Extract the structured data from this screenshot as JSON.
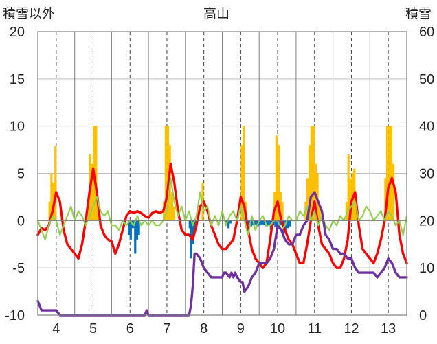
{
  "chart_data": {
    "type": "combo",
    "title": "高山",
    "left_axis_label": "積雪以外",
    "right_axis_label": "積雪",
    "left_ylim": [
      -10,
      20
    ],
    "right_ylim": [
      0,
      60
    ],
    "left_ticks": [
      "20",
      "15",
      "10",
      "5",
      "0",
      "-5",
      "-10"
    ],
    "right_ticks": [
      "60",
      "50",
      "40",
      "30",
      "20",
      "10",
      "0"
    ],
    "xlim": [
      3.5,
      13.5
    ],
    "x_ticks": [
      "4",
      "5",
      "6",
      "7",
      "8",
      "9",
      "10",
      "11",
      "12",
      "13"
    ],
    "grid": true,
    "series": [
      {
        "kind": "bar",
        "color": "#ffc000",
        "axis": "left",
        "x": [
          3.82,
          3.87,
          3.93,
          3.98,
          4.87,
          4.92,
          4.97,
          5.03,
          5.08,
          5.14,
          6.92,
          6.97,
          7.03,
          7.08,
          7.14,
          7.19,
          7.97,
          9.03,
          9.08,
          9.14,
          9.92,
          9.97,
          10.03,
          10.08,
          10.13,
          10.76,
          10.81,
          10.87,
          10.92,
          10.98,
          11.03,
          11.08,
          11.14,
          11.87,
          11.92,
          11.97,
          12.03,
          12.08,
          12.12,
          12.92,
          12.97,
          13.03,
          13.08,
          13.14
        ],
        "values": [
          2.0,
          5.0,
          4.0,
          7.9,
          2.0,
          7.0,
          6.0,
          10.0,
          10.0,
          2.0,
          2.0,
          10.0,
          10.0,
          8.0,
          3.0,
          1.5,
          4.0,
          8.0,
          10.0,
          2.0,
          3.0,
          9.0,
          8.0,
          3.0,
          2.0,
          2.0,
          4.5,
          8.0,
          10.0,
          10.0,
          6.0,
          5.0,
          1.5,
          2.0,
          7.0,
          4.5,
          5.0,
          5.5,
          2.0,
          4.5,
          10.0,
          10.0,
          10.0,
          6.0
        ]
      },
      {
        "kind": "bar",
        "color": "#0070c0",
        "axis": "left",
        "x": [
          5.97,
          6.02,
          6.08,
          6.14,
          6.19,
          6.24,
          7.62,
          7.66,
          7.71,
          7.76,
          8.62,
          8.67,
          8.72,
          9.17,
          9.22,
          9.28,
          9.34,
          9.4,
          9.46,
          9.52,
          9.58,
          9.64,
          9.7,
          9.76,
          9.82,
          9.88,
          9.94,
          9.98,
          10.04,
          10.1,
          10.16,
          10.22,
          10.28,
          10.34
        ],
        "values": [
          -1.5,
          -2.0,
          -0.8,
          -3.5,
          -2.0,
          -1.5,
          -0.8,
          -4.0,
          -2.5,
          -1.2,
          -0.5,
          -0.8,
          -0.3,
          -0.5,
          -0.4,
          -0.6,
          -0.5,
          -0.4,
          -0.6,
          -0.5,
          -0.4,
          -0.5,
          -0.6,
          -0.5,
          -1.0,
          -0.5,
          -0.7,
          -0.8,
          -0.5,
          -0.5,
          -1.5,
          -1.0,
          -0.8,
          -0.6
        ]
      },
      {
        "kind": "line",
        "color": "#ff0000",
        "axis": "left",
        "x": [
          3.5,
          3.6,
          3.7,
          3.8,
          3.9,
          4.0,
          4.1,
          4.2,
          4.3,
          4.4,
          4.5,
          4.6,
          4.7,
          4.8,
          4.9,
          5.0,
          5.1,
          5.2,
          5.3,
          5.4,
          5.5,
          5.6,
          5.7,
          5.8,
          5.9,
          6.0,
          6.1,
          6.2,
          6.3,
          6.4,
          6.5,
          6.6,
          6.7,
          6.8,
          6.9,
          7.0,
          7.1,
          7.2,
          7.3,
          7.4,
          7.5,
          7.6,
          7.7,
          7.8,
          7.9,
          8.0,
          8.1,
          8.2,
          8.3,
          8.4,
          8.5,
          8.6,
          8.7,
          8.8,
          8.9,
          9.0,
          9.1,
          9.2,
          9.3,
          9.4,
          9.5,
          9.6,
          9.7,
          9.8,
          9.9,
          10.0,
          10.1,
          10.2,
          10.3,
          10.4,
          10.5,
          10.6,
          10.7,
          10.8,
          10.9,
          11.0,
          11.1,
          11.2,
          11.3,
          11.4,
          11.5,
          11.6,
          11.7,
          11.8,
          11.9,
          12.0,
          12.1,
          12.2,
          12.3,
          12.4,
          12.5,
          12.6,
          12.7,
          12.8,
          12.9,
          13.0,
          13.1,
          13.2,
          13.3,
          13.4,
          13.5
        ],
        "values": [
          -1.5,
          -0.8,
          -1.0,
          -0.5,
          1.0,
          3.0,
          2.0,
          -1.0,
          -2.5,
          -3.0,
          -3.5,
          -4.0,
          -2.5,
          0.0,
          3.0,
          5.5,
          3.0,
          -0.5,
          -1.5,
          -2.0,
          -2.2,
          -3.5,
          -2.5,
          -1.0,
          0.5,
          1.0,
          0.8,
          1.0,
          0.8,
          0.5,
          0.3,
          0.8,
          1.0,
          0.8,
          1.0,
          2.5,
          6.0,
          4.0,
          1.0,
          -1.0,
          -1.5,
          -1.5,
          -2.0,
          -0.5,
          1.5,
          2.0,
          1.0,
          -0.5,
          -1.5,
          -2.5,
          -3.0,
          -3.0,
          -2.5,
          -2.0,
          0.0,
          2.5,
          1.5,
          -1.0,
          -3.0,
          -4.0,
          -4.5,
          -5.0,
          -4.5,
          -2.0,
          1.0,
          2.0,
          0.0,
          -1.0,
          -2.0,
          -2.5,
          -3.5,
          -4.5,
          -4.5,
          -2.5,
          0.0,
          2.0,
          -0.5,
          -2.5,
          -3.0,
          -3.5,
          -4.5,
          -5.0,
          -5.0,
          -4.0,
          -2.0,
          2.0,
          3.0,
          -0.5,
          -3.0,
          -3.5,
          -4.0,
          -4.5,
          -3.5,
          -2.0,
          0.0,
          3.5,
          4.5,
          3.0,
          -1.5,
          -3.5,
          -4.5
        ]
      },
      {
        "kind": "line",
        "color": "#92d050",
        "axis": "left",
        "x": [
          3.5,
          3.6,
          3.7,
          3.8,
          3.9,
          4.0,
          4.1,
          4.2,
          4.3,
          4.4,
          4.5,
          4.6,
          4.7,
          4.8,
          4.9,
          5.0,
          5.1,
          5.2,
          5.3,
          5.4,
          5.5,
          5.6,
          5.7,
          5.8,
          5.9,
          6.0,
          6.1,
          6.2,
          6.3,
          6.4,
          6.5,
          6.6,
          6.7,
          6.8,
          6.9,
          7.0,
          7.1,
          7.2,
          7.3,
          7.4,
          7.5,
          7.6,
          7.7,
          7.8,
          7.9,
          8.0,
          8.1,
          8.2,
          8.3,
          8.4,
          8.5,
          8.6,
          8.7,
          8.8,
          8.9,
          9.0,
          9.1,
          9.2,
          9.3,
          9.4,
          9.5,
          9.6,
          9.7,
          9.8,
          9.9,
          10.0,
          10.1,
          10.2,
          10.3,
          10.4,
          10.5,
          10.6,
          10.7,
          10.8,
          10.9,
          11.0,
          11.1,
          11.2,
          11.3,
          11.4,
          11.5,
          11.6,
          11.7,
          11.8,
          11.9,
          12.0,
          12.1,
          12.2,
          12.3,
          12.4,
          12.5,
          12.6,
          12.7,
          12.8,
          12.9,
          13.0,
          13.1,
          13.2,
          13.3,
          13.4,
          13.5
        ],
        "values": [
          0.0,
          -1.0,
          -2.0,
          -0.5,
          0.5,
          0.0,
          -1.5,
          -0.5,
          0.5,
          1.5,
          0.0,
          1.0,
          0.5,
          -0.5,
          0.5,
          1.5,
          2.5,
          1.0,
          0.5,
          1.0,
          -0.5,
          -0.5,
          -1.0,
          0.0,
          -0.5,
          0.0,
          -0.5,
          0.5,
          -0.5,
          0.0,
          -0.5,
          0.0,
          -0.5,
          -0.5,
          0.0,
          1.0,
          4.5,
          2.0,
          0.5,
          1.5,
          0.0,
          1.0,
          -0.5,
          0.5,
          3.0,
          1.0,
          1.5,
          -0.5,
          0.5,
          -0.5,
          1.0,
          -0.5,
          0.5,
          1.0,
          0.0,
          1.5,
          0.0,
          -1.5,
          0.5,
          -1.0,
          0.0,
          0.5,
          -0.5,
          -0.5,
          0.0,
          0.0,
          -1.0,
          -0.5,
          0.5,
          0.0,
          0.0,
          1.0,
          0.5,
          1.5,
          0.0,
          1.0,
          -0.5,
          0.5,
          -0.5,
          -1.0,
          0.0,
          -0.5,
          0.5,
          0.0,
          1.0,
          1.5,
          2.0,
          0.0,
          0.5,
          1.5,
          1.0,
          0.0,
          0.5,
          1.0,
          0.0,
          1.0,
          0.5,
          -0.5,
          0.0,
          -1.5,
          0.5
        ]
      },
      {
        "kind": "line",
        "color": "#7030a0",
        "axis": "right",
        "x": [
          3.5,
          3.55,
          3.6,
          3.8,
          4.0,
          4.1,
          6.4,
          6.45,
          6.5,
          7.6,
          7.65,
          7.7,
          7.75,
          7.8,
          7.9,
          8.0,
          8.1,
          8.2,
          8.3,
          8.5,
          8.55,
          8.6,
          8.7,
          8.75,
          8.8,
          8.85,
          8.9,
          9.0,
          9.05,
          9.1,
          9.2,
          9.3,
          9.4,
          9.5,
          9.6,
          9.7,
          9.8,
          9.9,
          10.0,
          10.1,
          10.2,
          10.3,
          10.4,
          10.5,
          10.6,
          10.7,
          10.8,
          10.9,
          11.0,
          11.1,
          11.2,
          11.3,
          11.4,
          11.5,
          11.6,
          11.7,
          11.8,
          11.9,
          12.0,
          12.1,
          12.2,
          12.3,
          12.4,
          12.5,
          12.6,
          12.7,
          12.8,
          12.9,
          13.0,
          13.1,
          13.2,
          13.3,
          13.4,
          13.5
        ],
        "values": [
          3,
          2,
          1,
          1,
          1,
          0,
          0,
          1,
          0,
          0,
          2,
          6,
          13,
          13,
          12,
          10,
          9,
          8,
          8,
          8,
          9,
          9,
          8,
          9,
          8,
          9,
          8,
          7,
          7,
          5,
          6,
          8,
          9,
          11,
          11,
          11,
          12,
          14,
          19,
          18,
          16,
          15,
          15,
          17,
          17,
          19,
          20,
          25,
          26,
          24,
          22,
          17,
          16,
          14,
          14,
          13,
          13,
          12,
          12,
          10,
          9,
          9,
          9,
          9,
          9,
          8,
          9,
          10,
          12,
          11,
          9,
          8,
          8,
          8
        ]
      }
    ]
  }
}
